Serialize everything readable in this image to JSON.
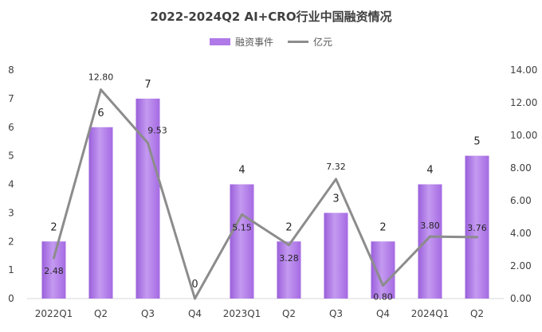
{
  "chart_data": {
    "type": "bar",
    "title": "2022-2024Q2 AI+CRO行业中国融资情况",
    "categories": [
      "2022Q1",
      "Q2",
      "Q3",
      "Q4",
      "2023Q1",
      "Q2",
      "Q3",
      "Q4",
      "2024Q1",
      "Q2"
    ],
    "series": [
      {
        "name": "融资事件",
        "type": "bar",
        "axis": "left",
        "values": [
          2,
          6,
          7,
          0,
          4,
          2,
          3,
          2,
          4,
          5
        ],
        "labels": [
          "2",
          "6",
          "7",
          "0",
          "4",
          "2",
          "3",
          "2",
          "4",
          "5"
        ]
      },
      {
        "name": "亿元",
        "type": "line",
        "axis": "right",
        "values": [
          2.48,
          12.8,
          9.53,
          0,
          5.15,
          3.28,
          7.32,
          0.8,
          3.8,
          3.76
        ],
        "labels": [
          "2.48",
          "12.80",
          "9.53",
          "",
          "5.15",
          "3.28",
          "7.32",
          "0.80",
          "3.80",
          "3.76"
        ]
      }
    ],
    "y_left": {
      "min": 0,
      "max": 8,
      "ticks": [
        "0",
        "1",
        "2",
        "3",
        "4",
        "5",
        "6",
        "7",
        "8"
      ]
    },
    "y_right": {
      "min": 0,
      "max": 14,
      "ticks": [
        "0.00",
        "2.00",
        "4.00",
        "6.00",
        "8.00",
        "10.00",
        "12.00",
        "14.00"
      ]
    },
    "legend_position": "top",
    "grid": false,
    "colors": {
      "bar": "#b079e8",
      "bar_dark": "#9a5fdb",
      "line": "#8c8c8c"
    }
  }
}
